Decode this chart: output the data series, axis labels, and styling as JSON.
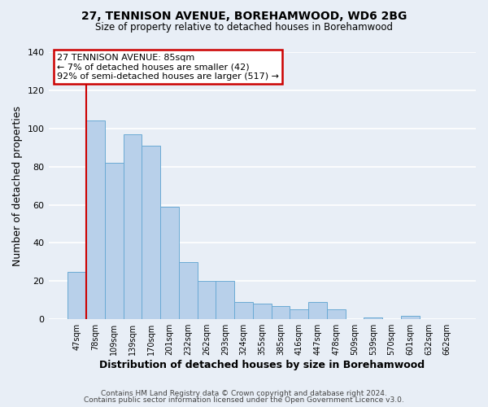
{
  "title": "27, TENNISON AVENUE, BOREHAMWOOD, WD6 2BG",
  "subtitle": "Size of property relative to detached houses in Borehamwood",
  "xlabel": "Distribution of detached houses by size in Borehamwood",
  "ylabel": "Number of detached properties",
  "bin_labels": [
    "47sqm",
    "78sqm",
    "109sqm",
    "139sqm",
    "170sqm",
    "201sqm",
    "232sqm",
    "262sqm",
    "293sqm",
    "324sqm",
    "355sqm",
    "385sqm",
    "416sqm",
    "447sqm",
    "478sqm",
    "509sqm",
    "539sqm",
    "570sqm",
    "601sqm",
    "632sqm",
    "662sqm"
  ],
  "bar_values": [
    25,
    104,
    82,
    97,
    91,
    59,
    30,
    20,
    20,
    9,
    8,
    7,
    5,
    9,
    5,
    0,
    1,
    0,
    2,
    0,
    0
  ],
  "bar_color": "#b8d0ea",
  "bar_edgecolor": "#6aaad4",
  "background_color": "#e8eef6",
  "grid_color": "#ffffff",
  "vline_color": "#cc0000",
  "ylim": [
    0,
    140
  ],
  "yticks": [
    0,
    20,
    40,
    60,
    80,
    100,
    120,
    140
  ],
  "annotation_title": "27 TENNISON AVENUE: 85sqm",
  "annotation_line1": "← 7% of detached houses are smaller (42)",
  "annotation_line2": "92% of semi-detached houses are larger (517) →",
  "annotation_box_edgecolor": "#cc0000",
  "footer_line1": "Contains HM Land Registry data © Crown copyright and database right 2024.",
  "footer_line2": "Contains public sector information licensed under the Open Government Licence v3.0."
}
